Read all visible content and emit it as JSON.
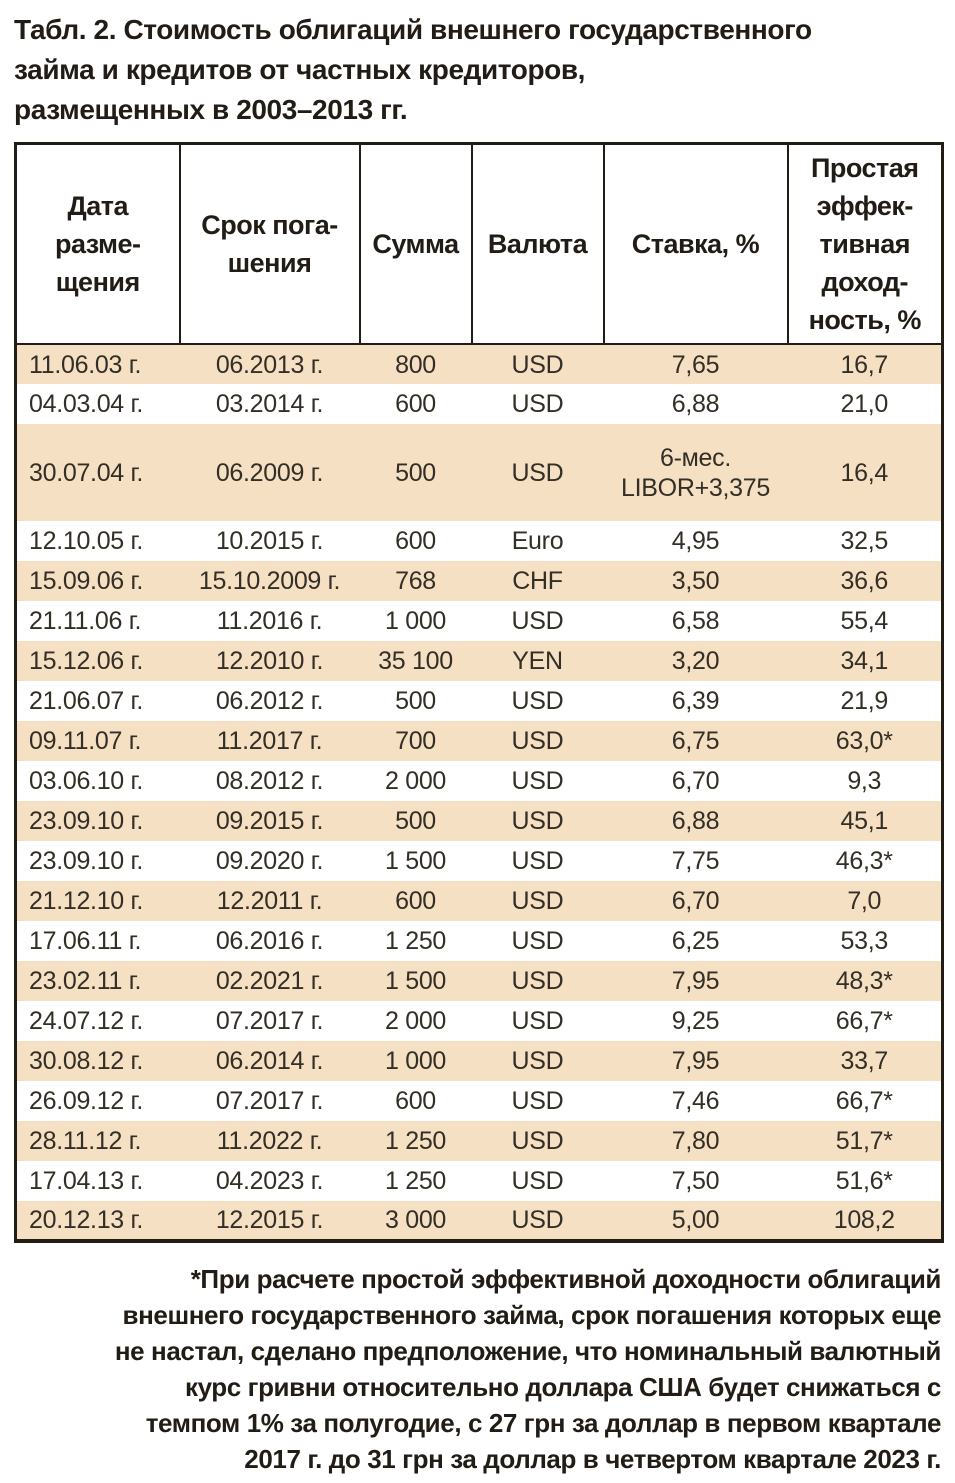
{
  "title": "Табл. 2. Стоимость облигаций внешнего государственного\nзайма и кредитов от частных кредиторов,\nразмещенных в 2003–2013 гг.",
  "table": {
    "headers": [
      "Дата\nразме-\nщения",
      "Срок пога-\nшения",
      "Сумма",
      "Валюта",
      "Ставка, %",
      "Простая\nэффек-\nтивная\nдоход-\nность, %"
    ],
    "rows": [
      {
        "date": "11.06.03 г.",
        "maturity": "06.2013 г.",
        "amount": "800",
        "currency": "USD",
        "rate": "7,65",
        "yield": "16,7"
      },
      {
        "date": "04.03.04 г.",
        "maturity": "03.2014 г.",
        "amount": "600",
        "currency": "USD",
        "rate": "6,88",
        "yield": "21,0"
      },
      {
        "date": "30.07.04 г.",
        "maturity": "06.2009 г.",
        "amount": "500",
        "currency": "USD",
        "rate": "6-мес.\nLIBOR+3,375",
        "yield": "16,4"
      },
      {
        "date": "12.10.05 г.",
        "maturity": "10.2015 г.",
        "amount": "600",
        "currency": "Euro",
        "rate": "4,95",
        "yield": "32,5"
      },
      {
        "date": "15.09.06 г.",
        "maturity": "15.10.2009 г.",
        "amount": "768",
        "currency": "CHF",
        "rate": "3,50",
        "yield": "36,6"
      },
      {
        "date": "21.11.06 г.",
        "maturity": "11.2016 г.",
        "amount": "1 000",
        "currency": "USD",
        "rate": "6,58",
        "yield": "55,4"
      },
      {
        "date": "15.12.06 г.",
        "maturity": "12.2010 г.",
        "amount": "35 100",
        "currency": "YEN",
        "rate": "3,20",
        "yield": "34,1"
      },
      {
        "date": "21.06.07 г.",
        "maturity": "06.2012 г.",
        "amount": "500",
        "currency": "USD",
        "rate": "6,39",
        "yield": "21,9"
      },
      {
        "date": "09.11.07 г.",
        "maturity": "11.2017 г.",
        "amount": "700",
        "currency": "USD",
        "rate": "6,75",
        "yield": "63,0*"
      },
      {
        "date": "03.06.10 г.",
        "maturity": "08.2012 г.",
        "amount": "2 000",
        "currency": "USD",
        "rate": "6,70",
        "yield": "9,3"
      },
      {
        "date": "23.09.10 г.",
        "maturity": "09.2015 г.",
        "amount": "500",
        "currency": "USD",
        "rate": "6,88",
        "yield": "45,1"
      },
      {
        "date": "23.09.10 г.",
        "maturity": "09.2020 г.",
        "amount": "1 500",
        "currency": "USD",
        "rate": "7,75",
        "yield": "46,3*"
      },
      {
        "date": "21.12.10 г.",
        "maturity": "12.2011 г.",
        "amount": "600",
        "currency": "USD",
        "rate": "6,70",
        "yield": "7,0"
      },
      {
        "date": "17.06.11 г.",
        "maturity": "06.2016 г.",
        "amount": "1 250",
        "currency": "USD",
        "rate": "6,25",
        "yield": "53,3"
      },
      {
        "date": "23.02.11 г.",
        "maturity": "02.2021 г.",
        "amount": "1 500",
        "currency": "USD",
        "rate": "7,95",
        "yield": "48,3*"
      },
      {
        "date": "24.07.12 г.",
        "maturity": "07.2017 г.",
        "amount": "2 000",
        "currency": "USD",
        "rate": "9,25",
        "yield": "66,7*"
      },
      {
        "date": "30.08.12 г.",
        "maturity": "06.2014 г.",
        "amount": "1 000",
        "currency": "USD",
        "rate": "7,95",
        "yield": "33,7"
      },
      {
        "date": "26.09.12 г.",
        "maturity": "07.2017 г.",
        "amount": "600",
        "currency": "USD",
        "rate": "7,46",
        "yield": "66,7*"
      },
      {
        "date": "28.11.12 г.",
        "maturity": "11.2022 г.",
        "amount": "1 250",
        "currency": "USD",
        "rate": "7,80",
        "yield": "51,7*"
      },
      {
        "date": "17.04.13 г.",
        "maturity": "04.2023 г.",
        "amount": "1 250",
        "currency": "USD",
        "rate": "7,50",
        "yield": "51,6*"
      },
      {
        "date": "20.12.13 г.",
        "maturity": "12.2015 г.",
        "amount": "3 000",
        "currency": "USD",
        "rate": "5,00",
        "yield": "108,2"
      }
    ]
  },
  "footnote": {
    "lines": [
      "*При расчете простой эффективной доходности облигаций",
      "внешнего государственного займа, срок погашения которых еще",
      "не настал, сделано предположение, что номинальный валютный",
      "курс гривни относительно доллара США будет снижаться с",
      "темпом 1% за полугодие, с 27 грн за доллар в первом квартале",
      "2017 г. до 31 грн за доллар в четвертом квартале 2023 г."
    ]
  },
  "colors": {
    "row_highlight": "#f6e0c4",
    "border": "#211c15",
    "body_text": "#332e26"
  }
}
